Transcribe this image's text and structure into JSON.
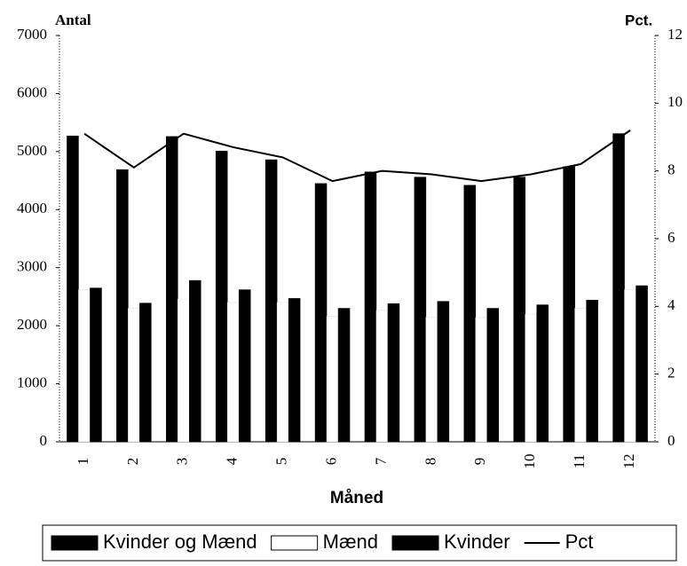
{
  "chart_data": {
    "type": "bar",
    "ylabel": "Antal",
    "y2label": "Pct.",
    "xlabel": "Måned",
    "categories": [
      "1",
      "2",
      "3",
      "4",
      "5",
      "6",
      "7",
      "8",
      "9",
      "10",
      "11",
      "12"
    ],
    "series": [
      {
        "name": "Kvinder og Mænd",
        "color": "#000000",
        "values": [
          5270,
          4690,
          5260,
          5010,
          4860,
          4450,
          4650,
          4560,
          4420,
          4560,
          4740,
          5310
        ]
      },
      {
        "name": "Mænd",
        "color": "#ffffff",
        "values": [
          2620,
          2300,
          2460,
          2400,
          2400,
          2160,
          2270,
          2150,
          2140,
          2200,
          2300,
          2620
        ]
      },
      {
        "name": "Kvinder",
        "color": "#000000",
        "values": [
          2650,
          2390,
          2780,
          2620,
          2470,
          2300,
          2380,
          2420,
          2300,
          2360,
          2440,
          2690
        ]
      },
      {
        "name": "Pct",
        "color": "#000000",
        "axis": "y2",
        "kind": "line",
        "values": [
          9.1,
          8.1,
          9.1,
          8.7,
          8.4,
          7.7,
          8.0,
          7.9,
          7.7,
          7.9,
          8.2,
          9.2
        ]
      }
    ],
    "ylim": [
      0,
      7000
    ],
    "yticks": [
      0,
      1000,
      2000,
      3000,
      4000,
      5000,
      6000,
      7000
    ],
    "y2lim": [
      0,
      12
    ],
    "y2ticks": [
      0,
      2,
      4,
      6,
      8,
      10,
      12
    ],
    "legend": "bottom"
  }
}
